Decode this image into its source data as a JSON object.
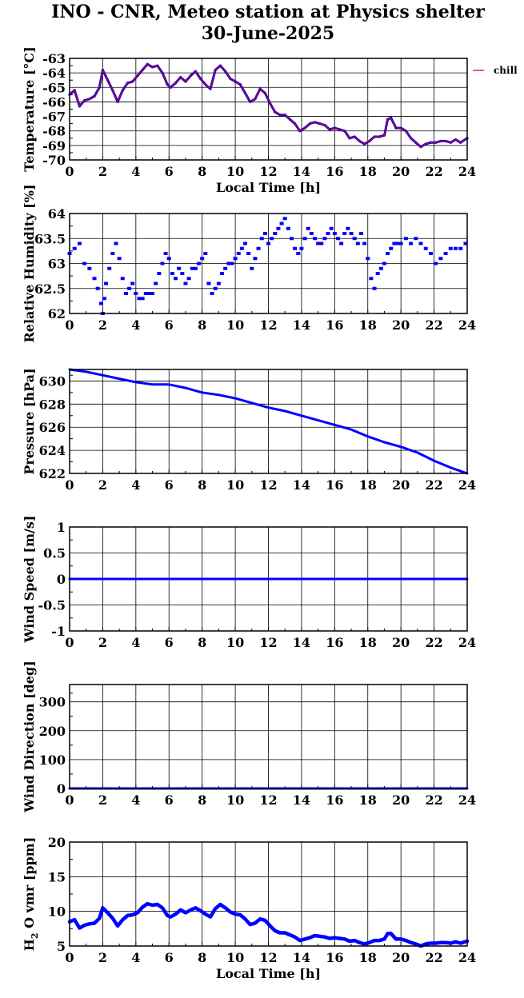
{
  "title_line1": "INO - CNR, Meteo station at Physics shelter",
  "title_line2": "30-June-2025",
  "colors": {
    "series": "#0000ff",
    "overlay": "#cc0000",
    "axes": "#000000",
    "grid": "#000000"
  },
  "chart_data": [
    {
      "type": "line",
      "ylabel": "Temperature [°C]",
      "xlabel": "Local Time [h]",
      "xlim": [
        0,
        24
      ],
      "ylim": [
        -70,
        -63
      ],
      "xticks": [
        0,
        2,
        4,
        6,
        8,
        10,
        12,
        14,
        16,
        18,
        20,
        22,
        24
      ],
      "yticks": [
        -70,
        -69,
        -68,
        -67,
        -66,
        -65,
        -64,
        -63
      ],
      "grid": true,
      "legend": {
        "entries": [
          "chill"
        ],
        "placement": "right-outside-top"
      },
      "series": [
        {
          "name": "",
          "role": "temperature",
          "marker": "line",
          "x": [
            0,
            0.3,
            0.6,
            0.9,
            1.2,
            1.5,
            1.8,
            2.0,
            2.3,
            2.6,
            2.9,
            3.2,
            3.5,
            3.8,
            4.1,
            4.4,
            4.7,
            5.0,
            5.3,
            5.6,
            5.9,
            6.1,
            6.4,
            6.7,
            7.0,
            7.3,
            7.6,
            7.9,
            8.2,
            8.5,
            8.8,
            9.1,
            9.4,
            9.7,
            10.0,
            10.3,
            10.6,
            10.9,
            11.2,
            11.5,
            11.8,
            12.1,
            12.4,
            12.7,
            13.0,
            13.3,
            13.6,
            13.9,
            14.2,
            14.5,
            14.8,
            15.1,
            15.4,
            15.7,
            16.0,
            16.3,
            16.6,
            16.9,
            17.2,
            17.5,
            17.8,
            18.1,
            18.4,
            18.7,
            19.0,
            19.2,
            19.4,
            19.7,
            20.0,
            20.3,
            20.6,
            20.9,
            21.2,
            21.5,
            21.8,
            22.1,
            22.4,
            22.7,
            23.0,
            23.3,
            23.6,
            24.0
          ],
          "y": [
            -65.5,
            -65.2,
            -66.3,
            -65.9,
            -65.8,
            -65.6,
            -65.0,
            -63.8,
            -64.5,
            -65.2,
            -66.0,
            -65.2,
            -64.7,
            -64.6,
            -64.2,
            -63.8,
            -63.4,
            -63.6,
            -63.5,
            -64.0,
            -64.8,
            -65.0,
            -64.7,
            -64.3,
            -64.6,
            -64.2,
            -63.9,
            -64.4,
            -64.8,
            -65.1,
            -63.8,
            -63.5,
            -63.9,
            -64.4,
            -64.6,
            -64.8,
            -65.4,
            -66.0,
            -65.8,
            -65.1,
            -65.4,
            -66.1,
            -66.7,
            -66.9,
            -66.9,
            -67.2,
            -67.5,
            -68.0,
            -67.8,
            -67.5,
            -67.4,
            -67.5,
            -67.6,
            -67.9,
            -67.8,
            -67.9,
            -68.0,
            -68.5,
            -68.4,
            -68.7,
            -68.9,
            -68.7,
            -68.4,
            -68.4,
            -68.3,
            -67.2,
            -67.1,
            -67.8,
            -67.8,
            -68.0,
            -68.5,
            -68.8,
            -69.1,
            -68.9,
            -68.8,
            -68.8,
            -68.7,
            -68.7,
            -68.8,
            -68.6,
            -68.8,
            -68.5
          ]
        },
        {
          "name": "chill",
          "role": "wind-chill",
          "marker": "line",
          "x": [
            0,
            0.3,
            0.6,
            0.9,
            1.2,
            1.5,
            1.8,
            2.0,
            2.3,
            2.6,
            2.9,
            3.2,
            3.5,
            3.8,
            4.1,
            4.4,
            4.7,
            5.0,
            5.3,
            5.6,
            5.9,
            6.1,
            6.4,
            6.7,
            7.0,
            7.3,
            7.6,
            7.9,
            8.2,
            8.5,
            8.8,
            9.1,
            9.4,
            9.7,
            10.0,
            10.3,
            10.6,
            10.9,
            11.2,
            11.5,
            11.8,
            12.1,
            12.4,
            12.7,
            13.0,
            13.3,
            13.6,
            13.9,
            14.2,
            14.5,
            14.8,
            15.1,
            15.4,
            15.7,
            16.0,
            16.3,
            16.6,
            16.9,
            17.2,
            17.5,
            17.8,
            18.1,
            18.4,
            18.7,
            19.0,
            19.2,
            19.4,
            19.7,
            20.0,
            20.3,
            20.6,
            20.9,
            21.2,
            21.5,
            21.8,
            22.1,
            22.4,
            22.7,
            23.0,
            23.3,
            23.6,
            24.0
          ],
          "y": [
            -65.5,
            -65.2,
            -66.3,
            -65.9,
            -65.8,
            -65.6,
            -65.0,
            -63.8,
            -64.5,
            -65.2,
            -66.0,
            -65.2,
            -64.7,
            -64.6,
            -64.2,
            -63.8,
            -63.4,
            -63.6,
            -63.5,
            -64.0,
            -64.8,
            -65.0,
            -64.7,
            -64.3,
            -64.6,
            -64.2,
            -63.9,
            -64.4,
            -64.8,
            -65.1,
            -63.8,
            -63.5,
            -63.9,
            -64.4,
            -64.6,
            -64.8,
            -65.4,
            -66.0,
            -65.8,
            -65.1,
            -65.4,
            -66.1,
            -66.7,
            -66.9,
            -66.9,
            -67.2,
            -67.5,
            -68.0,
            -67.8,
            -67.5,
            -67.4,
            -67.5,
            -67.6,
            -67.9,
            -67.8,
            -67.9,
            -68.0,
            -68.5,
            -68.4,
            -68.7,
            -68.9,
            -68.7,
            -68.4,
            -68.4,
            -68.3,
            -67.2,
            -67.1,
            -67.8,
            -67.8,
            -68.0,
            -68.5,
            -68.8,
            -69.1,
            -68.9,
            -68.8,
            -68.8,
            -68.7,
            -68.7,
            -68.8,
            -68.6,
            -68.8,
            -68.5
          ]
        }
      ]
    },
    {
      "type": "scatter",
      "ylabel": "Relative Humidity [%]",
      "xlabel": "",
      "xlim": [
        0,
        24
      ],
      "ylim": [
        62,
        64
      ],
      "xticks": [
        0,
        2,
        4,
        6,
        8,
        10,
        12,
        14,
        16,
        18,
        20,
        22,
        24
      ],
      "yticks": [
        62,
        62.5,
        63,
        63.5,
        64
      ],
      "grid": true,
      "series": [
        {
          "name": "",
          "role": "humidity",
          "marker": "square",
          "x": [
            0,
            0.3,
            0.6,
            0.9,
            1.2,
            1.5,
            1.7,
            1.9,
            2.0,
            2.1,
            2.2,
            2.4,
            2.6,
            2.8,
            3.0,
            3.2,
            3.4,
            3.6,
            3.8,
            4.0,
            4.2,
            4.4,
            4.6,
            4.8,
            5.0,
            5.2,
            5.4,
            5.6,
            5.8,
            6.0,
            6.2,
            6.4,
            6.6,
            6.8,
            7.0,
            7.2,
            7.4,
            7.6,
            7.8,
            8.0,
            8.2,
            8.4,
            8.6,
            8.8,
            9.0,
            9.2,
            9.4,
            9.6,
            9.8,
            10.0,
            10.2,
            10.4,
            10.6,
            10.8,
            11.0,
            11.2,
            11.4,
            11.6,
            11.8,
            12.0,
            12.2,
            12.4,
            12.6,
            12.8,
            13.0,
            13.2,
            13.4,
            13.6,
            13.8,
            14.0,
            14.2,
            14.4,
            14.6,
            14.8,
            15.0,
            15.2,
            15.4,
            15.6,
            15.8,
            16.0,
            16.2,
            16.4,
            16.6,
            16.8,
            17.0,
            17.2,
            17.4,
            17.6,
            17.8,
            18.0,
            18.2,
            18.4,
            18.6,
            18.8,
            19.0,
            19.2,
            19.4,
            19.6,
            19.8,
            20.0,
            20.3,
            20.6,
            20.9,
            21.2,
            21.5,
            21.8,
            22.1,
            22.4,
            22.7,
            23.0,
            23.3,
            23.6,
            23.9
          ],
          "y": [
            63.2,
            63.3,
            63.4,
            63.0,
            62.9,
            62.7,
            62.5,
            62.2,
            62.0,
            62.3,
            62.6,
            62.9,
            63.2,
            63.4,
            63.1,
            62.7,
            62.4,
            62.5,
            62.6,
            62.4,
            62.3,
            62.3,
            62.4,
            62.4,
            62.4,
            62.6,
            62.8,
            63.0,
            63.2,
            63.1,
            62.8,
            62.7,
            62.9,
            62.8,
            62.6,
            62.7,
            62.9,
            62.9,
            63.0,
            63.1,
            63.2,
            62.6,
            62.4,
            62.5,
            62.6,
            62.8,
            62.9,
            63.0,
            63.0,
            63.1,
            63.2,
            63.3,
            63.4,
            63.2,
            62.9,
            63.1,
            63.3,
            63.5,
            63.6,
            63.4,
            63.5,
            63.6,
            63.7,
            63.8,
            63.9,
            63.7,
            63.5,
            63.3,
            63.2,
            63.3,
            63.5,
            63.7,
            63.6,
            63.5,
            63.4,
            63.4,
            63.5,
            63.6,
            63.7,
            63.6,
            63.5,
            63.4,
            63.6,
            63.7,
            63.6,
            63.5,
            63.4,
            63.6,
            63.4,
            63.1,
            62.7,
            62.5,
            62.8,
            62.9,
            63.0,
            63.2,
            63.3,
            63.4,
            63.4,
            63.4,
            63.5,
            63.4,
            63.5,
            63.4,
            63.3,
            63.2,
            63.0,
            63.1,
            63.2,
            63.3,
            63.3,
            63.3,
            63.4
          ]
        }
      ]
    },
    {
      "type": "line",
      "ylabel": "Pressure [hPa]",
      "xlabel": "",
      "xlim": [
        0,
        24
      ],
      "ylim": [
        622,
        631
      ],
      "xticks": [
        0,
        2,
        4,
        6,
        8,
        10,
        12,
        14,
        16,
        18,
        20,
        22,
        24
      ],
      "yticks": [
        622,
        624,
        626,
        628,
        630
      ],
      "grid": true,
      "series": [
        {
          "name": "",
          "role": "pressure",
          "marker": "line",
          "x": [
            0,
            1,
            2,
            3,
            4,
            5,
            6,
            7,
            8,
            9,
            10,
            11,
            12,
            13,
            14,
            15,
            16,
            17,
            18,
            19,
            20,
            21,
            22,
            23,
            24
          ],
          "y": [
            631.0,
            630.8,
            630.5,
            630.2,
            629.9,
            629.7,
            629.7,
            629.4,
            629.0,
            628.8,
            628.5,
            628.1,
            627.7,
            627.4,
            627.0,
            626.6,
            626.2,
            625.8,
            625.2,
            624.7,
            624.3,
            623.8,
            623.1,
            622.5,
            622.0
          ]
        }
      ]
    },
    {
      "type": "line",
      "ylabel": "Wind Speed [m/s]",
      "xlabel": "",
      "xlim": [
        0,
        24
      ],
      "ylim": [
        -1,
        1
      ],
      "xticks": [
        0,
        2,
        4,
        6,
        8,
        10,
        12,
        14,
        16,
        18,
        20,
        22,
        24
      ],
      "yticks": [
        -1,
        -0.5,
        0,
        0.5,
        1
      ],
      "grid": true,
      "series": [
        {
          "name": "",
          "role": "wind-speed",
          "marker": "line",
          "x": [
            0,
            24
          ],
          "y": [
            0,
            0
          ]
        }
      ]
    },
    {
      "type": "line",
      "ylabel": "Wind Direction [deg]",
      "xlabel": "",
      "xlim": [
        0,
        24
      ],
      "ylim": [
        0,
        360
      ],
      "xticks": [
        0,
        2,
        4,
        6,
        8,
        10,
        12,
        14,
        16,
        18,
        20,
        22,
        24
      ],
      "yticks": [
        0,
        100,
        200,
        300
      ],
      "grid": true,
      "series": [
        {
          "name": "",
          "role": "wind-direction",
          "marker": "line",
          "x": [
            0,
            24
          ],
          "y": [
            0,
            0
          ]
        }
      ]
    },
    {
      "type": "line",
      "ylabel": "H2O vmr [ppm]",
      "xlabel": "Local Time [h]",
      "xlim": [
        0,
        24
      ],
      "ylim": [
        5,
        20
      ],
      "xticks": [
        0,
        2,
        4,
        6,
        8,
        10,
        12,
        14,
        16,
        18,
        20,
        22,
        24
      ],
      "yticks": [
        5,
        10,
        15,
        20
      ],
      "grid": true,
      "series": [
        {
          "name": "",
          "role": "h2o",
          "marker": "thick-line",
          "x": [
            0,
            0.3,
            0.6,
            0.9,
            1.2,
            1.5,
            1.8,
            2.0,
            2.3,
            2.6,
            2.9,
            3.2,
            3.5,
            3.8,
            4.1,
            4.4,
            4.7,
            5.0,
            5.3,
            5.6,
            5.9,
            6.1,
            6.4,
            6.7,
            7.0,
            7.3,
            7.6,
            7.9,
            8.2,
            8.5,
            8.8,
            9.1,
            9.4,
            9.7,
            10.0,
            10.3,
            10.6,
            10.9,
            11.2,
            11.5,
            11.8,
            12.1,
            12.4,
            12.7,
            13.0,
            13.3,
            13.6,
            13.9,
            14.2,
            14.5,
            14.8,
            15.1,
            15.4,
            15.7,
            16.0,
            16.3,
            16.6,
            16.9,
            17.2,
            17.5,
            17.8,
            18.1,
            18.4,
            18.7,
            19.0,
            19.2,
            19.4,
            19.7,
            20.0,
            20.3,
            20.6,
            20.9,
            21.2,
            21.5,
            21.8,
            22.1,
            22.4,
            22.7,
            23.0,
            23.3,
            23.6,
            24.0
          ],
          "y": [
            8.5,
            8.8,
            7.6,
            8.0,
            8.2,
            8.3,
            9.0,
            10.5,
            9.8,
            9.0,
            7.9,
            8.8,
            9.4,
            9.5,
            9.8,
            10.6,
            11.1,
            10.9,
            11.0,
            10.5,
            9.4,
            9.2,
            9.6,
            10.2,
            9.8,
            10.2,
            10.5,
            10.1,
            9.6,
            9.2,
            10.4,
            11.0,
            10.5,
            9.9,
            9.6,
            9.5,
            8.9,
            8.1,
            8.3,
            8.9,
            8.7,
            7.9,
            7.2,
            6.9,
            6.9,
            6.6,
            6.3,
            5.8,
            6.0,
            6.2,
            6.5,
            6.4,
            6.3,
            6.1,
            6.2,
            6.1,
            6.0,
            5.7,
            5.8,
            5.5,
            5.3,
            5.5,
            5.8,
            5.8,
            6.0,
            6.8,
            6.8,
            6.0,
            6.0,
            5.8,
            5.5,
            5.3,
            5.0,
            5.3,
            5.4,
            5.4,
            5.5,
            5.5,
            5.4,
            5.6,
            5.4,
            5.7
          ]
        }
      ]
    }
  ]
}
